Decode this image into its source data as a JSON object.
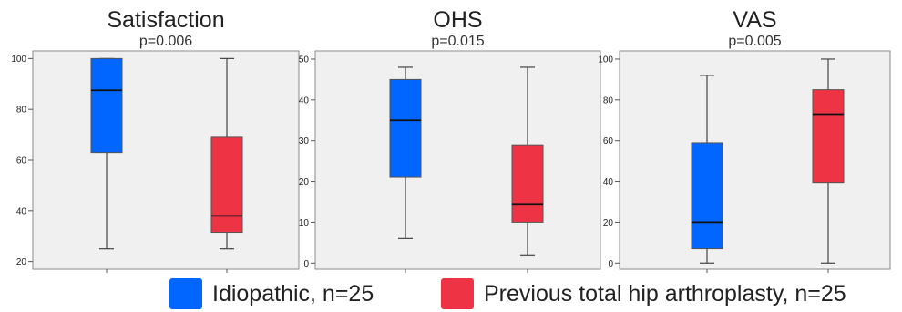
{
  "colors": {
    "idiopathic": "#0066ff",
    "previous_tha": "#ee3344",
    "panel_bg": "#f0f0f0"
  },
  "legend": {
    "items": [
      {
        "label": "Idiopathic, n=25",
        "color": "#0066ff"
      },
      {
        "label": "Previous total hip arthroplasty, n=25",
        "color": "#ee3344"
      }
    ]
  },
  "chart_data": [
    {
      "type": "box",
      "title": "Satisfaction",
      "subtitle": "p=0.006",
      "ylim": [
        17,
        103
      ],
      "yticks": [
        20,
        40,
        60,
        80,
        100
      ],
      "grid": false,
      "series": [
        {
          "name": "Idiopathic, n=25",
          "min": 25,
          "q1": 63,
          "median": 87.5,
          "q3": 100,
          "max": 100
        },
        {
          "name": "Previous total hip arthroplasty, n=25",
          "min": 25,
          "q1": 31.5,
          "median": 38,
          "q3": 69,
          "max": 100
        }
      ]
    },
    {
      "type": "box",
      "title": "OHS",
      "subtitle": "p=0.015",
      "ylim": [
        -1.5,
        52
      ],
      "yticks": [
        0,
        10,
        20,
        30,
        40,
        50
      ],
      "grid": false,
      "series": [
        {
          "name": "Idiopathic, n=25",
          "min": 6,
          "q1": 21,
          "median": 35,
          "q3": 45,
          "max": 48
        },
        {
          "name": "Previous total hip arthroplasty, n=25",
          "min": 2,
          "q1": 10,
          "median": 14.5,
          "q3": 29,
          "max": 48
        }
      ]
    },
    {
      "type": "box",
      "title": "VAS",
      "subtitle": "p=0.005",
      "ylim": [
        -3,
        104
      ],
      "yticks": [
        0,
        20,
        40,
        60,
        80,
        100
      ],
      "grid": false,
      "series": [
        {
          "name": "Idiopathic, n=25",
          "min": 0,
          "q1": 7,
          "median": 20,
          "q3": 59,
          "max": 92
        },
        {
          "name": "Previous total hip arthroplasty, n=25",
          "min": 0,
          "q1": 39.5,
          "median": 73,
          "q3": 85,
          "max": 100
        }
      ]
    }
  ]
}
